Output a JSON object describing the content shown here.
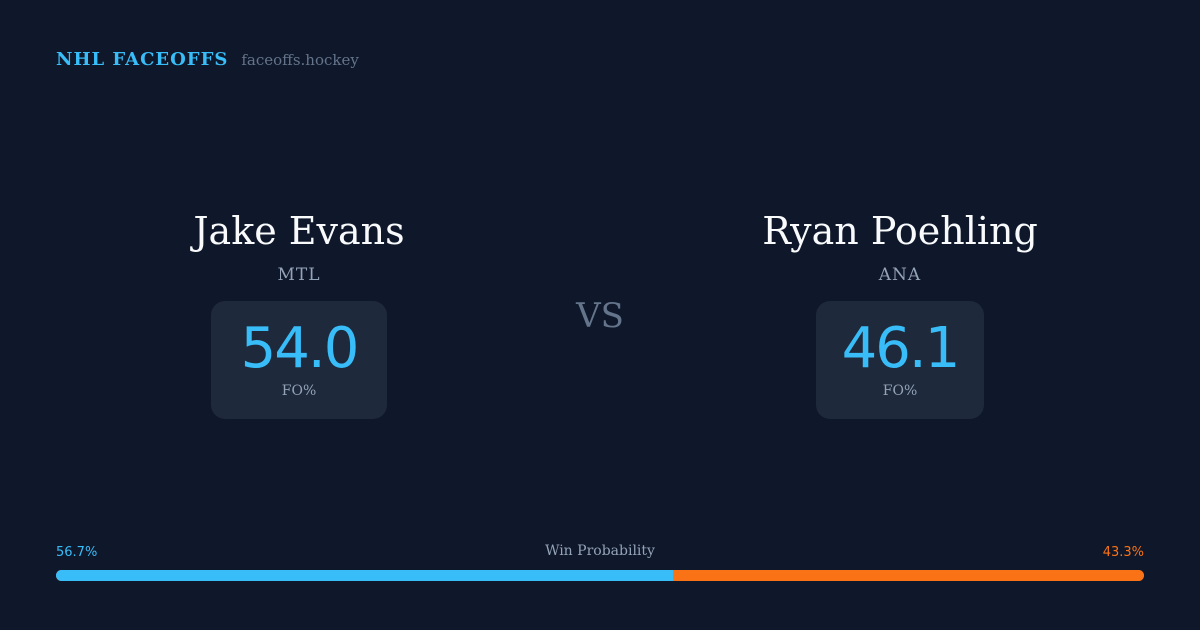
{
  "brand": {
    "name": "NHL FACEOFFS",
    "url": "faceoffs.hockey"
  },
  "players": [
    {
      "name": "Jake Evans",
      "team": "MTL",
      "value": "54.0",
      "label": "FO%"
    },
    {
      "name": "Ryan Poehling",
      "team": "ANA",
      "value": "46.1",
      "label": "FO%"
    }
  ],
  "vs": "VS",
  "win_probability": {
    "title": "Win Probability",
    "left_label": "56.7%",
    "right_label": "43.3%",
    "left_value": 56.7,
    "right_value": 43.3,
    "left_color": "#38bdf8",
    "right_color": "#f97316"
  },
  "colors": {
    "background": "#0f172a",
    "card": "#1e293b",
    "accent": "#38bdf8"
  }
}
